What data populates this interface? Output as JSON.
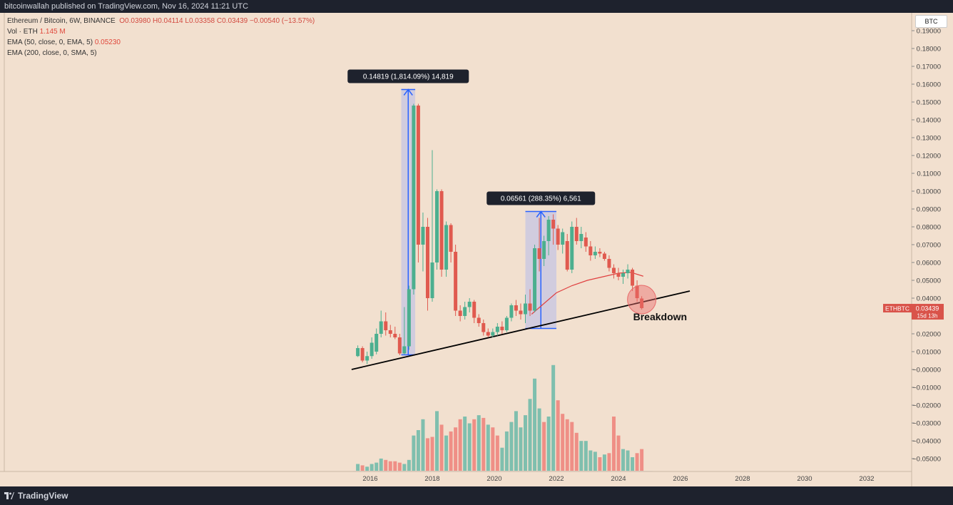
{
  "header": {
    "publisher": "bitcoinwallah published on TradingView.com, Nov 16, 2024 11:21 UTC"
  },
  "legend": {
    "symbol_line": "Ethereum / Bitcoin, 6W, BINANCE",
    "ohlc": "O0.03980 H0.04114 L0.03358 C0.03439 −0.00540 (−13.57%)",
    "vol_label": "Vol · ETH",
    "vol_value": "1.145 M",
    "ema50_label": "EMA (50, close, 0, EMA, 5)",
    "ema50_value": "0.05230",
    "ema200_label": "EMA (200, close, 0, SMA, 5)"
  },
  "currency_button": "BTC",
  "price_tag": {
    "symbol": "ETHBTC",
    "price": "0.03439",
    "countdown": "15d 13h"
  },
  "footer": {
    "brand": "TradingView"
  },
  "colors": {
    "up": "#4caf8f",
    "down": "#e05a4f",
    "vol_up": "#7fbfae",
    "vol_down": "#ef8f86",
    "ema": "#e04040",
    "background": "#f2e0cf",
    "measure_fill": "#c5c6e3",
    "measure_line": "#2962ff"
  },
  "chart_data": {
    "type": "candlestick",
    "title": "Ethereum / Bitcoin, 6W, BINANCE",
    "ylim": [
      -0.055,
      0.195
    ],
    "y_ticks": [
      "0.19000",
      "0.18000",
      "0.17000",
      "0.16000",
      "0.15000",
      "0.14000",
      "0.13000",
      "0.12000",
      "0.11000",
      "0.10000",
      "0.09000",
      "0.08000",
      "0.07000",
      "0.06000",
      "0.05000",
      "0.04000",
      "0.03000",
      "0.02000",
      "0.01000",
      "−0.00000",
      "−0.01000",
      "−0.02000",
      "−0.03000",
      "−0.04000",
      "−0.05000"
    ],
    "y_tick_values": [
      0.19,
      0.18,
      0.17,
      0.16,
      0.15,
      0.14,
      0.13,
      0.12,
      0.11,
      0.1,
      0.09,
      0.08,
      0.07,
      0.06,
      0.05,
      0.04,
      0.03,
      0.02,
      0.01,
      0,
      -0.01,
      -0.02,
      -0.03,
      -0.04,
      -0.05
    ],
    "x_ticks": [
      "2016",
      "2018",
      "2020",
      "2022",
      "2024",
      "2026",
      "2028",
      "2030",
      "2032"
    ],
    "x_tick_values": [
      2016,
      2018,
      2020,
      2022,
      2024,
      2026,
      2028,
      2030,
      2032
    ],
    "xlim": [
      2016.05,
      2032.0
    ],
    "candles": [
      {
        "x": 2015.6,
        "o": 0.0075,
        "h": 0.0135,
        "l": 0.007,
        "c": 0.012
      },
      {
        "x": 2015.75,
        "o": 0.012,
        "h": 0.013,
        "l": 0.004,
        "c": 0.005
      },
      {
        "x": 2015.9,
        "o": 0.005,
        "h": 0.01,
        "l": 0.003,
        "c": 0.0075
      },
      {
        "x": 2016.05,
        "o": 0.0075,
        "h": 0.018,
        "l": 0.006,
        "c": 0.015
      },
      {
        "x": 2016.2,
        "o": 0.01,
        "h": 0.023,
        "l": 0.0085,
        "c": 0.02
      },
      {
        "x": 2016.35,
        "o": 0.02,
        "h": 0.033,
        "l": 0.018,
        "c": 0.027
      },
      {
        "x": 2016.5,
        "o": 0.027,
        "h": 0.032,
        "l": 0.019,
        "c": 0.022
      },
      {
        "x": 2016.65,
        "o": 0.022,
        "h": 0.025,
        "l": 0.018,
        "c": 0.02
      },
      {
        "x": 2016.8,
        "o": 0.02,
        "h": 0.024,
        "l": 0.017,
        "c": 0.018
      },
      {
        "x": 2016.95,
        "o": 0.018,
        "h": 0.02,
        "l": 0.008,
        "c": 0.009
      },
      {
        "x": 2017.1,
        "o": 0.009,
        "h": 0.035,
        "l": 0.0085,
        "c": 0.013
      },
      {
        "x": 2017.25,
        "o": 0.013,
        "h": 0.047,
        "l": 0.011,
        "c": 0.045
      },
      {
        "x": 2017.4,
        "o": 0.045,
        "h": 0.149,
        "l": 0.042,
        "c": 0.148
      },
      {
        "x": 2017.55,
        "o": 0.148,
        "h": 0.149,
        "l": 0.06,
        "c": 0.07
      },
      {
        "x": 2017.7,
        "o": 0.07,
        "h": 0.088,
        "l": 0.055,
        "c": 0.08
      },
      {
        "x": 2017.85,
        "o": 0.08,
        "h": 0.085,
        "l": 0.033,
        "c": 0.04
      },
      {
        "x": 2018.0,
        "o": 0.04,
        "h": 0.123,
        "l": 0.038,
        "c": 0.06
      },
      {
        "x": 2018.15,
        "o": 0.06,
        "h": 0.101,
        "l": 0.056,
        "c": 0.1
      },
      {
        "x": 2018.3,
        "o": 0.1,
        "h": 0.101,
        "l": 0.052,
        "c": 0.056
      },
      {
        "x": 2018.45,
        "o": 0.056,
        "h": 0.083,
        "l": 0.052,
        "c": 0.081
      },
      {
        "x": 2018.6,
        "o": 0.081,
        "h": 0.082,
        "l": 0.06,
        "c": 0.066
      },
      {
        "x": 2018.75,
        "o": 0.066,
        "h": 0.07,
        "l": 0.03,
        "c": 0.033
      },
      {
        "x": 2018.9,
        "o": 0.033,
        "h": 0.036,
        "l": 0.027,
        "c": 0.03
      },
      {
        "x": 2019.05,
        "o": 0.03,
        "h": 0.038,
        "l": 0.028,
        "c": 0.035
      },
      {
        "x": 2019.2,
        "o": 0.035,
        "h": 0.04,
        "l": 0.032,
        "c": 0.038
      },
      {
        "x": 2019.35,
        "o": 0.038,
        "h": 0.039,
        "l": 0.026,
        "c": 0.029
      },
      {
        "x": 2019.5,
        "o": 0.029,
        "h": 0.031,
        "l": 0.024,
        "c": 0.026
      },
      {
        "x": 2019.65,
        "o": 0.026,
        "h": 0.028,
        "l": 0.019,
        "c": 0.021
      },
      {
        "x": 2019.8,
        "o": 0.021,
        "h": 0.023,
        "l": 0.018,
        "c": 0.019
      },
      {
        "x": 2019.95,
        "o": 0.019,
        "h": 0.023,
        "l": 0.018,
        "c": 0.021
      },
      {
        "x": 2020.1,
        "o": 0.021,
        "h": 0.026,
        "l": 0.019,
        "c": 0.024
      },
      {
        "x": 2020.25,
        "o": 0.024,
        "h": 0.027,
        "l": 0.02,
        "c": 0.022
      },
      {
        "x": 2020.4,
        "o": 0.022,
        "h": 0.03,
        "l": 0.021,
        "c": 0.029
      },
      {
        "x": 2020.55,
        "o": 0.029,
        "h": 0.037,
        "l": 0.027,
        "c": 0.036
      },
      {
        "x": 2020.7,
        "o": 0.036,
        "h": 0.039,
        "l": 0.03,
        "c": 0.033
      },
      {
        "x": 2020.85,
        "o": 0.033,
        "h": 0.037,
        "l": 0.028,
        "c": 0.031
      },
      {
        "x": 2021.0,
        "o": 0.031,
        "h": 0.042,
        "l": 0.026,
        "c": 0.037
      },
      {
        "x": 2021.15,
        "o": 0.037,
        "h": 0.045,
        "l": 0.03,
        "c": 0.033
      },
      {
        "x": 2021.3,
        "o": 0.033,
        "h": 0.07,
        "l": 0.032,
        "c": 0.068
      },
      {
        "x": 2021.45,
        "o": 0.068,
        "h": 0.085,
        "l": 0.055,
        "c": 0.062
      },
      {
        "x": 2021.6,
        "o": 0.062,
        "h": 0.075,
        "l": 0.058,
        "c": 0.072
      },
      {
        "x": 2021.75,
        "o": 0.072,
        "h": 0.086,
        "l": 0.064,
        "c": 0.084
      },
      {
        "x": 2021.9,
        "o": 0.084,
        "h": 0.087,
        "l": 0.07,
        "c": 0.079
      },
      {
        "x": 2022.05,
        "o": 0.079,
        "h": 0.081,
        "l": 0.067,
        "c": 0.07
      },
      {
        "x": 2022.2,
        "o": 0.07,
        "h": 0.079,
        "l": 0.065,
        "c": 0.077
      },
      {
        "x": 2022.35,
        "o": 0.072,
        "h": 0.076,
        "l": 0.055,
        "c": 0.056
      },
      {
        "x": 2022.5,
        "o": 0.056,
        "h": 0.083,
        "l": 0.054,
        "c": 0.08
      },
      {
        "x": 2022.65,
        "o": 0.08,
        "h": 0.085,
        "l": 0.07,
        "c": 0.072
      },
      {
        "x": 2022.8,
        "o": 0.072,
        "h": 0.08,
        "l": 0.068,
        "c": 0.076
      },
      {
        "x": 2022.95,
        "o": 0.074,
        "h": 0.077,
        "l": 0.066,
        "c": 0.069
      },
      {
        "x": 2023.1,
        "o": 0.069,
        "h": 0.072,
        "l": 0.061,
        "c": 0.064
      },
      {
        "x": 2023.25,
        "o": 0.064,
        "h": 0.069,
        "l": 0.062,
        "c": 0.066
      },
      {
        "x": 2023.4,
        "o": 0.066,
        "h": 0.068,
        "l": 0.063,
        "c": 0.065
      },
      {
        "x": 2023.55,
        "o": 0.065,
        "h": 0.066,
        "l": 0.061,
        "c": 0.062
      },
      {
        "x": 2023.7,
        "o": 0.062,
        "h": 0.064,
        "l": 0.055,
        "c": 0.057
      },
      {
        "x": 2023.85,
        "o": 0.057,
        "h": 0.059,
        "l": 0.051,
        "c": 0.054
      },
      {
        "x": 2024.0,
        "o": 0.054,
        "h": 0.057,
        "l": 0.05,
        "c": 0.052
      },
      {
        "x": 2024.15,
        "o": 0.052,
        "h": 0.056,
        "l": 0.048,
        "c": 0.054
      },
      {
        "x": 2024.3,
        "o": 0.054,
        "h": 0.059,
        "l": 0.051,
        "c": 0.056
      },
      {
        "x": 2024.45,
        "o": 0.056,
        "h": 0.057,
        "l": 0.044,
        "c": 0.047
      },
      {
        "x": 2024.6,
        "o": 0.047,
        "h": 0.05,
        "l": 0.038,
        "c": 0.04
      },
      {
        "x": 2024.75,
        "o": 0.0398,
        "h": 0.0411,
        "l": 0.0336,
        "c": 0.0344
      }
    ],
    "volume": [
      {
        "x": 2015.6,
        "v": 0.5,
        "up": true
      },
      {
        "x": 2015.75,
        "v": 0.4,
        "up": false
      },
      {
        "x": 2015.9,
        "v": 0.3,
        "up": true
      },
      {
        "x": 2016.05,
        "v": 0.5,
        "up": true
      },
      {
        "x": 2016.2,
        "v": 0.6,
        "up": true
      },
      {
        "x": 2016.35,
        "v": 0.9,
        "up": true
      },
      {
        "x": 2016.5,
        "v": 0.8,
        "up": false
      },
      {
        "x": 2016.65,
        "v": 0.7,
        "up": false
      },
      {
        "x": 2016.8,
        "v": 0.7,
        "up": false
      },
      {
        "x": 2016.95,
        "v": 0.6,
        "up": false
      },
      {
        "x": 2017.1,
        "v": 0.5,
        "up": true
      },
      {
        "x": 2017.25,
        "v": 0.8,
        "up": true
      },
      {
        "x": 2017.4,
        "v": 2.6,
        "up": true
      },
      {
        "x": 2017.55,
        "v": 3.0,
        "up": true
      },
      {
        "x": 2017.7,
        "v": 3.8,
        "up": true
      },
      {
        "x": 2017.85,
        "v": 2.4,
        "up": false
      },
      {
        "x": 2018.0,
        "v": 2.5,
        "up": false
      },
      {
        "x": 2018.15,
        "v": 4.4,
        "up": true
      },
      {
        "x": 2018.3,
        "v": 3.4,
        "up": false
      },
      {
        "x": 2018.45,
        "v": 2.6,
        "up": true
      },
      {
        "x": 2018.6,
        "v": 2.9,
        "up": false
      },
      {
        "x": 2018.75,
        "v": 3.2,
        "up": false
      },
      {
        "x": 2018.9,
        "v": 3.8,
        "up": false
      },
      {
        "x": 2019.05,
        "v": 4.0,
        "up": true
      },
      {
        "x": 2019.2,
        "v": 3.5,
        "up": true
      },
      {
        "x": 2019.35,
        "v": 3.8,
        "up": false
      },
      {
        "x": 2019.5,
        "v": 4.1,
        "up": true
      },
      {
        "x": 2019.65,
        "v": 3.9,
        "up": false
      },
      {
        "x": 2019.8,
        "v": 3.4,
        "up": true
      },
      {
        "x": 2019.95,
        "v": 3.2,
        "up": false
      },
      {
        "x": 2020.1,
        "v": 2.6,
        "up": false
      },
      {
        "x": 2020.25,
        "v": 1.7,
        "up": true
      },
      {
        "x": 2020.4,
        "v": 2.9,
        "up": true
      },
      {
        "x": 2020.55,
        "v": 3.6,
        "up": true
      },
      {
        "x": 2020.7,
        "v": 4.4,
        "up": true
      },
      {
        "x": 2020.85,
        "v": 3.2,
        "up": true
      },
      {
        "x": 2021.0,
        "v": 4.1,
        "up": true
      },
      {
        "x": 2021.15,
        "v": 5.3,
        "up": true
      },
      {
        "x": 2021.3,
        "v": 6.8,
        "up": true
      },
      {
        "x": 2021.45,
        "v": 4.6,
        "up": true
      },
      {
        "x": 2021.6,
        "v": 3.6,
        "up": false
      },
      {
        "x": 2021.75,
        "v": 4.0,
        "up": true
      },
      {
        "x": 2021.9,
        "v": 7.8,
        "up": true
      },
      {
        "x": 2022.05,
        "v": 5.2,
        "up": false
      },
      {
        "x": 2022.2,
        "v": 4.2,
        "up": false
      },
      {
        "x": 2022.35,
        "v": 3.8,
        "up": false
      },
      {
        "x": 2022.5,
        "v": 3.6,
        "up": false
      },
      {
        "x": 2022.65,
        "v": 2.8,
        "up": false
      },
      {
        "x": 2022.8,
        "v": 2.2,
        "up": true
      },
      {
        "x": 2022.95,
        "v": 2.2,
        "up": true
      },
      {
        "x": 2023.1,
        "v": 1.5,
        "up": true
      },
      {
        "x": 2023.25,
        "v": 1.4,
        "up": true
      },
      {
        "x": 2023.4,
        "v": 1.0,
        "up": false
      },
      {
        "x": 2023.55,
        "v": 1.2,
        "up": true
      },
      {
        "x": 2023.7,
        "v": 1.3,
        "up": false
      },
      {
        "x": 2023.85,
        "v": 4.0,
        "up": false
      },
      {
        "x": 2024.0,
        "v": 2.6,
        "up": false
      },
      {
        "x": 2024.15,
        "v": 1.6,
        "up": true
      },
      {
        "x": 2024.3,
        "v": 1.5,
        "up": true
      },
      {
        "x": 2024.45,
        "v": 1.0,
        "up": true
      },
      {
        "x": 2024.6,
        "v": 1.3,
        "up": false
      },
      {
        "x": 2024.75,
        "v": 1.6,
        "up": false
      }
    ],
    "ema50": [
      [
        2021.2,
        0.031
      ],
      [
        2021.6,
        0.037
      ],
      [
        2022.0,
        0.043
      ],
      [
        2022.5,
        0.047
      ],
      [
        2023.0,
        0.05
      ],
      [
        2023.5,
        0.052
      ],
      [
        2024.0,
        0.054
      ],
      [
        2024.4,
        0.0545
      ],
      [
        2024.8,
        0.0523
      ]
    ],
    "trendline": [
      [
        2015.4,
        0.0
      ],
      [
        2026.3,
        0.044
      ]
    ],
    "measure_1": {
      "x0": 2017.0,
      "x1": 2017.45,
      "y0": 0.0082,
      "y1": 0.157,
      "label": "0.14819 (1,814.09%) 14,819"
    },
    "measure_2": {
      "x0": 2021.0,
      "x1": 2022.0,
      "y0": 0.023,
      "y1": 0.0886,
      "label": "0.06561 (288.35%) 6,561"
    },
    "annotation": {
      "text": "Breakdown",
      "x": 2024.75,
      "y": 0.0392
    }
  }
}
